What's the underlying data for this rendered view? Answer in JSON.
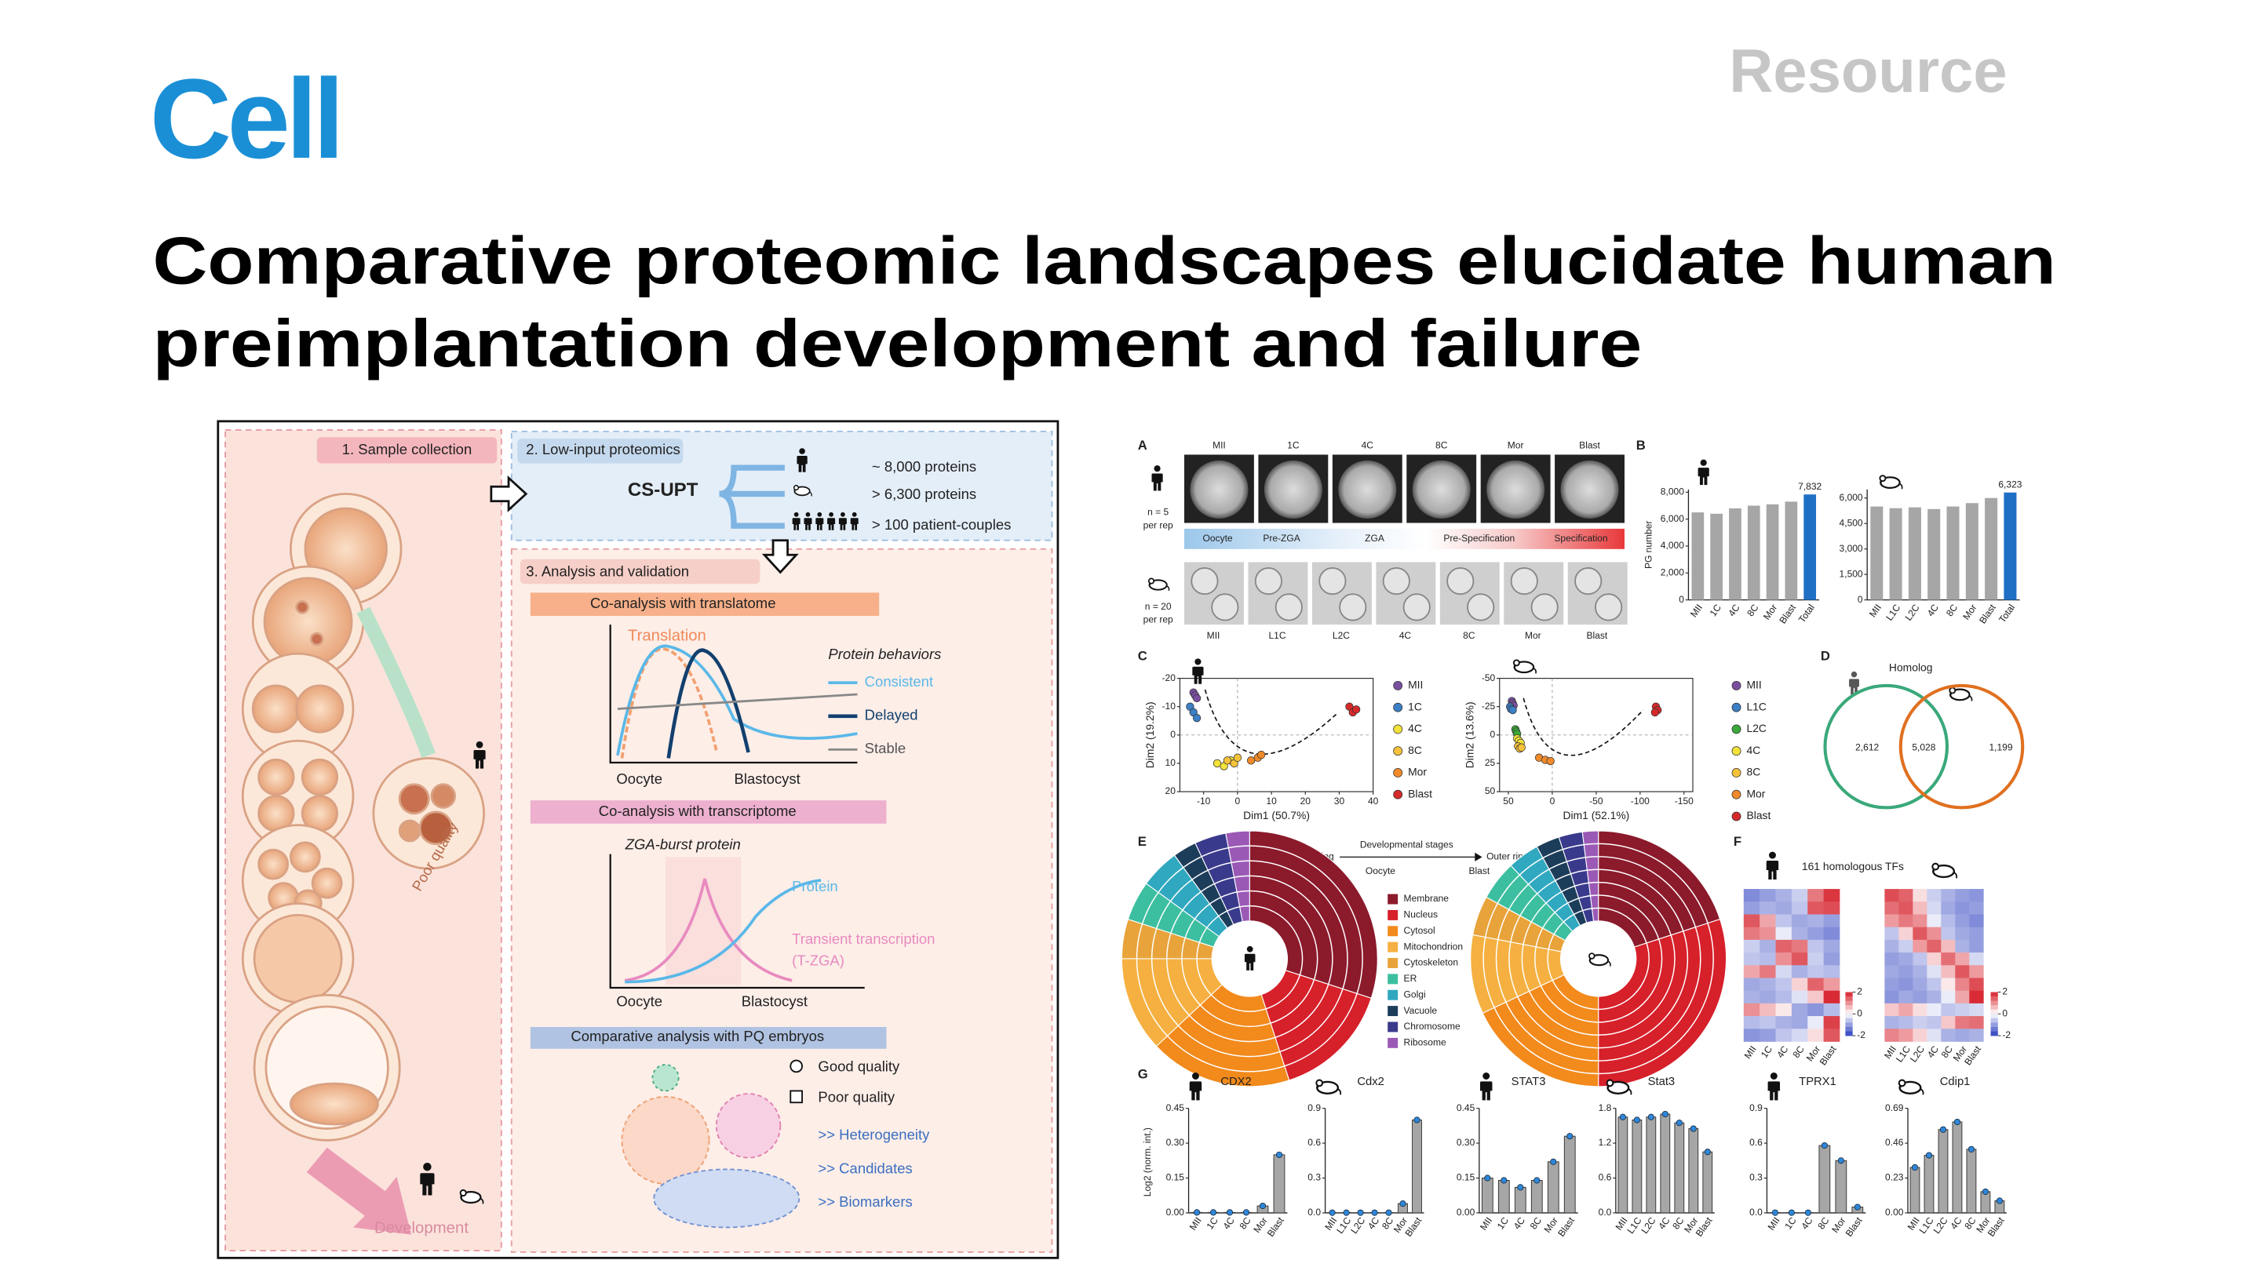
{
  "header": {
    "journal": "Cell",
    "article_type": "Resource",
    "title": [
      "Comparative proteomic landscapes elucidate human",
      "preimplantation development and failure"
    ]
  },
  "graphical_abstract": {
    "sample_collection": "1. Sample collection",
    "poor_quality": "Poor quality",
    "development": "Development",
    "low_input": "2. Low-input proteomics",
    "method": "CS-UPT",
    "outputs": [
      "~ 8,000 proteins",
      "> 6,300 proteins",
      "> 100 patient-couples"
    ],
    "analysis": "3. Analysis and validation",
    "translatome": {
      "heading": "Co-analysis with translatome",
      "curve": "Translation",
      "legend_title": "Protein behaviors",
      "legend": [
        "Consistent",
        "Delayed",
        "Stable"
      ],
      "x_start": "Oocyte",
      "x_end": "Blastocyst"
    },
    "transcriptome": {
      "heading": "Co-analysis with transcriptome",
      "subtitle": "ZGA-burst protein",
      "protein": "Protein",
      "transient": [
        "Transient transcription",
        "(T-ZGA)"
      ],
      "x_start": "Oocyte",
      "x_end": "Blastocyst"
    },
    "pq": {
      "heading": "Comparative analysis with PQ embryos",
      "legend": [
        "Good quality",
        "Poor quality"
      ],
      "outcomes": [
        ">> Heterogeneity",
        ">> Candidates",
        ">> Biomarkers"
      ]
    }
  },
  "figure": {
    "panels": [
      "A",
      "B",
      "C",
      "D",
      "E",
      "F",
      "G"
    ],
    "A": {
      "human_stages": [
        "MII",
        "1C",
        "4C",
        "8C",
        "Mor",
        "Blast"
      ],
      "human_n": [
        "n = 5",
        "per rep"
      ],
      "phases": [
        "Oocyte",
        "Pre-ZGA",
        "ZGA",
        "Pre-Specification",
        "Specification"
      ],
      "mouse_n": [
        "n = 20",
        "per rep"
      ],
      "mouse_stages": [
        "MII",
        "L1C",
        "L2C",
        "4C",
        "8C",
        "Mor",
        "Blast"
      ]
    },
    "B": {
      "ylabel": "PG number",
      "charts": [
        {
          "species": "human",
          "categories": [
            "MII",
            "1C",
            "4C",
            "8C",
            "Mor",
            "Blast",
            "Total"
          ],
          "values": [
            6500,
            6400,
            6800,
            7000,
            7100,
            7300,
            7832
          ],
          "value_labels": [
            null,
            null,
            null,
            null,
            null,
            null,
            "7,832"
          ],
          "colors": [
            "#a6a6a6",
            "#a6a6a6",
            "#a6a6a6",
            "#a6a6a6",
            "#a6a6a6",
            "#a6a6a6",
            "#1f6fc5"
          ],
          "ylim": [
            0,
            8200
          ],
          "yticks": [
            0,
            {
              "value": 2000,
              "label": "2,000"
            },
            {
              "value": 4000,
              "label": "4,000"
            },
            {
              "value": 6000,
              "label": "6,000"
            },
            {
              "value": 8000,
              "label": "8,000"
            }
          ]
        },
        {
          "species": "mouse",
          "categories": [
            "MII",
            "L1C",
            "L2C",
            "4C",
            "8C",
            "Mor",
            "Blast",
            "Total"
          ],
          "values": [
            5500,
            5400,
            5450,
            5350,
            5500,
            5700,
            6000,
            6323
          ],
          "value_labels": [
            null,
            null,
            null,
            null,
            null,
            null,
            null,
            "6,323"
          ],
          "colors": [
            "#a6a6a6",
            "#a6a6a6",
            "#a6a6a6",
            "#a6a6a6",
            "#a6a6a6",
            "#a6a6a6",
            "#a6a6a6",
            "#1f6fc5"
          ],
          "ylim": [
            0,
            6500
          ],
          "yticks": [
            0,
            {
              "value": 1500,
              "label": "1,500"
            },
            {
              "value": 3000,
              "label": "3,000"
            },
            {
              "value": 4500,
              "label": "4,500"
            },
            {
              "value": 6000,
              "label": "6,000"
            }
          ]
        }
      ]
    },
    "C": {
      "charts": [
        {
          "species": "human",
          "xlabel": "Dim1 (50.7%)",
          "ylabel": "Dim2 (19.2%)",
          "xlim": [
            -17,
            40
          ],
          "ylim": [
            20,
            -20
          ],
          "xticks": [
            -10,
            0,
            10,
            20,
            30,
            40
          ],
          "yticks": [
            -20,
            -10,
            0,
            10,
            20
          ],
          "series": [
            {
              "name": "MII",
              "color": "#7b4fa0",
              "x": [
                -13,
                -12.5,
                -12
              ],
              "y": [
                -15,
                -14,
                -13
              ]
            },
            {
              "name": "1C",
              "color": "#3b7fc4",
              "x": [
                -14,
                -13,
                -12
              ],
              "y": [
                -10,
                -8,
                -6
              ]
            },
            {
              "name": "4C",
              "color": "#f2e23a",
              "x": [
                -6,
                -4,
                -2
              ],
              "y": [
                10,
                11,
                9
              ]
            },
            {
              "name": "8C",
              "color": "#f5c23a",
              "x": [
                -3,
                -1,
                0
              ],
              "y": [
                9,
                10,
                8
              ]
            },
            {
              "name": "Mor",
              "color": "#f08a2a",
              "x": [
                4,
                6,
                7
              ],
              "y": [
                9,
                8,
                7
              ]
            },
            {
              "name": "Blast",
              "color": "#d62a2a",
              "x": [
                33,
                34,
                35
              ],
              "y": [
                -10,
                -8,
                -9
              ]
            }
          ]
        },
        {
          "species": "mouse",
          "xlabel": "Dim1 (52.1%)",
          "ylabel": "Dim2 (13.6%)",
          "xlim": [
            60,
            -160
          ],
          "ylim": [
            50,
            -50
          ],
          "xticks": [
            50,
            0,
            -50,
            -100,
            -150
          ],
          "yticks": [
            -50,
            -25,
            0,
            25,
            50
          ],
          "series": [
            {
              "name": "MII",
              "color": "#7b4fa0",
              "x": [
                46,
                45,
                44
              ],
              "y": [
                -30,
                -28,
                -26
              ]
            },
            {
              "name": "L1C",
              "color": "#3b7fc4",
              "x": [
                48,
                47,
                45
              ],
              "y": [
                -25,
                -23,
                -22
              ]
            },
            {
              "name": "L2C",
              "color": "#3aa83a",
              "x": [
                42,
                41,
                40
              ],
              "y": [
                -5,
                -3,
                -1
              ]
            },
            {
              "name": "4C",
              "color": "#f2e23a",
              "x": [
                40,
                38,
                36
              ],
              "y": [
                3,
                5,
                7
              ]
            },
            {
              "name": "8C",
              "color": "#f5c23a",
              "x": [
                39,
                37,
                35
              ],
              "y": [
                10,
                12,
                11
              ]
            },
            {
              "name": "Mor",
              "color": "#f08a2a",
              "x": [
                15,
                8,
                2
              ],
              "y": [
                20,
                22,
                23
              ]
            },
            {
              "name": "Blast",
              "color": "#d62a2a",
              "x": [
                -118,
                -120,
                -117
              ],
              "y": [
                -25,
                -22,
                -20
              ]
            }
          ]
        }
      ]
    },
    "D": {
      "title": "Homolog",
      "count_labels": [
        "2,612",
        "5,028",
        "1,199"
      ]
    },
    "E": {
      "inner": "Inner ring",
      "axis": "Developmental stages",
      "outer": "Outer ring",
      "start": "Oocyte",
      "end": "Blast",
      "compartments": [
        {
          "name": "Membrane",
          "color": "#8b1a2b"
        },
        {
          "name": "Nucleus",
          "color": "#d6202a"
        },
        {
          "name": "Cytosol",
          "color": "#f28a1c"
        },
        {
          "name": "Mitochondrion",
          "color": "#f5b041"
        },
        {
          "name": "Cytoskeleton",
          "color": "#e8a33a"
        },
        {
          "name": "ER",
          "color": "#3cbfa0"
        },
        {
          "name": "Golgi",
          "color": "#30a8c0"
        },
        {
          "name": "Vacuole",
          "color": "#1c3d5a"
        },
        {
          "name": "Chromosome",
          "color": "#3a3a8c"
        },
        {
          "name": "Ribosome",
          "color": "#9b59b6"
        }
      ],
      "human_shares": [
        30,
        15,
        18,
        12,
        5,
        5,
        5,
        3,
        4,
        3
      ],
      "mouse_shares": [
        20,
        30,
        18,
        10,
        5,
        5,
        4,
        3,
        3,
        2
      ],
      "human_rings": 6,
      "mouse_rings": 7
    },
    "F": {
      "title": "161 homologous TFs",
      "colorbar_ticks": [
        2,
        0,
        -2
      ],
      "human": {
        "categories": [
          "MII",
          "1C",
          "4C",
          "8C",
          "Mor",
          "Blast"
        ],
        "values": [
          [
            -1.2,
            -1,
            -0.8,
            -0.5,
            1.2,
            1.8
          ],
          [
            -1,
            -0.8,
            -0.9,
            -0.6,
            1.5,
            1.6
          ],
          [
            1.5,
            0.8,
            -0.6,
            -0.9,
            -0.8,
            -1
          ],
          [
            1.2,
            1.0,
            -0.2,
            -0.8,
            -1,
            -1.2
          ],
          [
            -0.5,
            -0.8,
            1.4,
            1.2,
            -0.6,
            -0.9
          ],
          [
            -0.6,
            -0.7,
            1.0,
            1.5,
            -0.5,
            -1
          ],
          [
            0.8,
            1.2,
            -0.4,
            -0.8,
            -0.6,
            -0.7
          ],
          [
            -0.9,
            -0.8,
            -0.6,
            0.4,
            1.4,
            0.9
          ],
          [
            -0.8,
            -0.9,
            -0.7,
            -0.3,
            0.5,
            1.9
          ],
          [
            1.0,
            0.6,
            0.2,
            -0.9,
            -1.1,
            -0.7
          ],
          [
            -0.7,
            -0.6,
            -0.8,
            -0.9,
            -0.2,
            1.7
          ],
          [
            -1.1,
            -1.0,
            -0.6,
            -0.4,
            0.3,
            1.5
          ]
        ]
      },
      "mouse": {
        "categories": [
          "MII",
          "L1C",
          "L2C",
          "4C",
          "8C",
          "Mor",
          "Blast"
        ],
        "values": [
          [
            1.6,
            1.4,
            0.3,
            -0.5,
            -0.8,
            -1,
            -1.1
          ],
          [
            1.3,
            1.5,
            0.6,
            -0.4,
            -0.9,
            -1.1,
            -1
          ],
          [
            0.9,
            1.2,
            1.0,
            -0.2,
            -0.7,
            -1,
            -1.2
          ],
          [
            -0.6,
            0.4,
            1.5,
            1.0,
            -0.6,
            -0.9,
            -1
          ],
          [
            -0.8,
            -0.5,
            0.9,
            1.4,
            0.6,
            -0.8,
            -1
          ],
          [
            -1,
            -0.9,
            -0.6,
            0.4,
            1.3,
            0.8,
            -0.4
          ],
          [
            -0.9,
            -1,
            -0.8,
            -0.3,
            0.6,
            1.5,
            0.9
          ],
          [
            -1,
            -1.1,
            -0.9,
            -0.6,
            0.2,
            1.1,
            1.6
          ],
          [
            -1.1,
            -0.9,
            -1,
            -0.8,
            -0.2,
            0.8,
            1.9
          ],
          [
            0.5,
            0.8,
            0.3,
            -0.2,
            -0.6,
            -0.5,
            -0.4
          ],
          [
            -0.8,
            -0.7,
            -0.5,
            -0.6,
            0.5,
            1.2,
            1.3
          ],
          [
            1.1,
            0.9,
            0.4,
            -0.3,
            -0.8,
            -0.9,
            -0.8
          ]
        ]
      }
    },
    "G": {
      "ylabel": "Log2 (norm. int.)",
      "charts": [
        {
          "title": "CDX2",
          "species": "human",
          "categories": [
            "MII",
            "1C",
            "4C",
            "8C",
            "Mor",
            "Blast"
          ],
          "values": [
            0.002,
            0.002,
            0.002,
            0.002,
            0.03,
            0.25
          ],
          "ylim": [
            0,
            0.45
          ],
          "yticks": [
            {
              "value": 0,
              "label": "0.00"
            },
            {
              "value": 0.15,
              "label": "0.15"
            },
            {
              "value": 0.3,
              "label": "0.30"
            },
            {
              "value": 0.45,
              "label": "0.45"
            }
          ]
        },
        {
          "title": "Cdx2",
          "species": "mouse",
          "categories": [
            "MII",
            "L1C",
            "L2C",
            "4C",
            "8C",
            "Mor",
            "Blast"
          ],
          "values": [
            0.002,
            0.002,
            0.002,
            0.002,
            0.002,
            0.08,
            0.8
          ],
          "ylim": [
            0,
            0.9
          ],
          "yticks": [
            {
              "value": 0,
              "label": "0.0"
            },
            {
              "value": 0.3,
              "label": "0.3"
            },
            {
              "value": 0.6,
              "label": "0.6"
            },
            {
              "value": 0.9,
              "label": "0.9"
            }
          ]
        },
        {
          "title": "STAT3",
          "species": "human",
          "categories": [
            "MII",
            "1C",
            "4C",
            "8C",
            "Mor",
            "Blast"
          ],
          "values": [
            0.15,
            0.14,
            0.11,
            0.14,
            0.22,
            0.33
          ],
          "ylim": [
            0,
            0.45
          ],
          "yticks": [
            {
              "value": 0,
              "label": "0.00"
            },
            {
              "value": 0.15,
              "label": "0.15"
            },
            {
              "value": 0.3,
              "label": "0.30"
            },
            {
              "value": 0.45,
              "label": "0.45"
            }
          ]
        },
        {
          "title": "Stat3",
          "species": "mouse",
          "categories": [
            "MII",
            "L1C",
            "L2C",
            "4C",
            "8C",
            "Mor",
            "Blast"
          ],
          "values": [
            1.65,
            1.6,
            1.65,
            1.7,
            1.55,
            1.45,
            1.05
          ],
          "ylim": [
            0,
            1.8
          ],
          "yticks": [
            {
              "value": 0,
              "label": "0.0"
            },
            {
              "value": 0.6,
              "label": "0.6"
            },
            {
              "value": 1.2,
              "label": "1.2"
            },
            {
              "value": 1.8,
              "label": "1.8"
            }
          ]
        },
        {
          "title": "TPRX1",
          "species": "human",
          "categories": [
            "MII",
            "1C",
            "4C",
            "8C",
            "Mor",
            "Blast"
          ],
          "values": [
            0.002,
            0.002,
            0.002,
            0.58,
            0.45,
            0.05
          ],
          "ylim": [
            0,
            0.9
          ],
          "yticks": [
            {
              "value": 0,
              "label": "0.0"
            },
            {
              "value": 0.3,
              "label": "0.3"
            },
            {
              "value": 0.6,
              "label": "0.6"
            },
            {
              "value": 0.9,
              "label": "0.9"
            }
          ]
        },
        {
          "title": "Cdip1",
          "species": "mouse",
          "categories": [
            "MII",
            "L1C",
            "L2C",
            "4C",
            "8C",
            "Mor",
            "Blast"
          ],
          "values": [
            0.3,
            0.38,
            0.55,
            0.6,
            0.42,
            0.14,
            0.08
          ],
          "ylim": [
            0,
            0.69
          ],
          "yticks": [
            {
              "value": 0,
              "label": "0.00"
            },
            {
              "value": 0.23,
              "label": "0.23"
            },
            {
              "value": 0.46,
              "label": "0.46"
            },
            {
              "value": 0.69,
              "label": "0.69"
            }
          ]
        }
      ]
    }
  }
}
